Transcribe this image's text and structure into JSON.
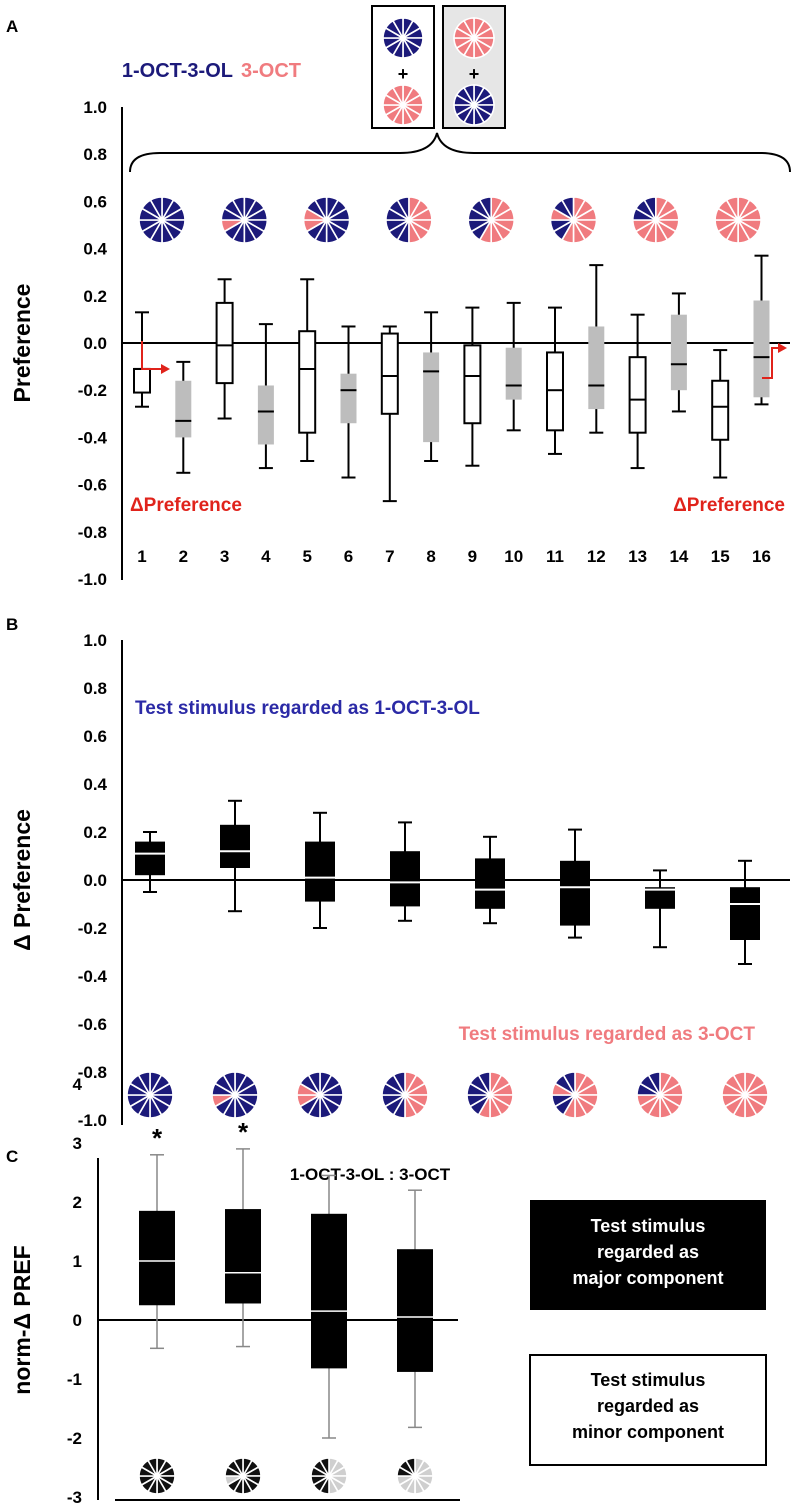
{
  "chart_data": [
    {
      "panel": "A",
      "type": "boxplot",
      "ylabel": "Preference",
      "ylim": [
        -1.0,
        1.0
      ],
      "yticks": [
        "1.0",
        "0.8",
        "0.6",
        "0.4",
        "0.2",
        "0.0",
        "-0.2",
        "-0.4",
        "-0.6",
        "-0.8",
        "-1.0"
      ],
      "categories": [
        "1",
        "2",
        "3",
        "4",
        "5",
        "6",
        "7",
        "8",
        "9",
        "10",
        "11",
        "12",
        "13",
        "14",
        "15",
        "16"
      ],
      "legend": {
        "series1": "1-OCT-3-OL",
        "series2": "3-OCT"
      },
      "annotation_left": "ΔPreference",
      "annotation_right": "ΔPreference",
      "colors": {
        "series1": "#1c1a7a",
        "series2": "#f07b7f",
        "open_box": "#ffffff",
        "filled_box": "#bdbdbd",
        "arrow": "#e0231b"
      },
      "mixture_pink_segments": [
        0,
        1,
        2,
        3,
        4,
        5,
        6,
        8
      ],
      "boxes": [
        {
          "x": "1",
          "whislo": -0.27,
          "q1": -0.21,
          "med": -0.11,
          "q3": -0.11,
          "whishi": 0.13,
          "fill": "open"
        },
        {
          "x": "2",
          "whislo": -0.55,
          "q1": -0.4,
          "med": -0.33,
          "q3": -0.16,
          "whishi": -0.08,
          "fill": "filled"
        },
        {
          "x": "3",
          "whislo": -0.32,
          "q1": -0.17,
          "med": -0.01,
          "q3": 0.17,
          "whishi": 0.27,
          "fill": "open"
        },
        {
          "x": "4",
          "whislo": -0.53,
          "q1": -0.43,
          "med": -0.29,
          "q3": -0.18,
          "whishi": 0.08,
          "fill": "filled"
        },
        {
          "x": "5",
          "whislo": -0.5,
          "q1": -0.38,
          "med": -0.11,
          "q3": 0.05,
          "whishi": 0.27,
          "fill": "open"
        },
        {
          "x": "6",
          "whislo": -0.57,
          "q1": -0.34,
          "med": -0.2,
          "q3": -0.13,
          "whishi": 0.07,
          "fill": "filled"
        },
        {
          "x": "7",
          "whislo": -0.67,
          "q1": -0.3,
          "med": -0.14,
          "q3": 0.04,
          "whishi": 0.07,
          "fill": "open"
        },
        {
          "x": "8",
          "whislo": -0.5,
          "q1": -0.42,
          "med": -0.12,
          "q3": -0.04,
          "whishi": 0.13,
          "fill": "filled"
        },
        {
          "x": "9",
          "whislo": -0.52,
          "q1": -0.34,
          "med": -0.14,
          "q3": -0.01,
          "whishi": 0.15,
          "fill": "open"
        },
        {
          "x": "10",
          "whislo": -0.37,
          "q1": -0.24,
          "med": -0.18,
          "q3": -0.02,
          "whishi": 0.17,
          "fill": "filled"
        },
        {
          "x": "11",
          "whislo": -0.47,
          "q1": -0.37,
          "med": -0.2,
          "q3": -0.04,
          "whishi": 0.15,
          "fill": "open"
        },
        {
          "x": "12",
          "whislo": -0.38,
          "q1": -0.28,
          "med": -0.18,
          "q3": 0.07,
          "whishi": 0.33,
          "fill": "filled"
        },
        {
          "x": "13",
          "whislo": -0.53,
          "q1": -0.38,
          "med": -0.24,
          "q3": -0.06,
          "whishi": 0.12,
          "fill": "open"
        },
        {
          "x": "14",
          "whislo": -0.29,
          "q1": -0.2,
          "med": -0.09,
          "q3": 0.12,
          "whishi": 0.21,
          "fill": "filled"
        },
        {
          "x": "15",
          "whislo": -0.57,
          "q1": -0.41,
          "med": -0.27,
          "q3": -0.16,
          "whishi": -0.03,
          "fill": "open"
        },
        {
          "x": "16",
          "whislo": -0.26,
          "q1": -0.23,
          "med": -0.06,
          "q3": 0.18,
          "whishi": 0.37,
          "fill": "filled"
        }
      ]
    },
    {
      "panel": "B",
      "type": "boxplot",
      "ylabel": "Δ Preference",
      "ylim": [
        -1.0,
        1.0
      ],
      "yticks": [
        "1.0",
        "0.8",
        "0.6",
        "0.4",
        "0.2",
        "0.0",
        "-0.2",
        "-0.4",
        "-0.6",
        "-0.8",
        "-1.0"
      ],
      "annotation_top": "Test stimulus regarded as  1-OCT-3-OL",
      "annotation_bottom": "Test stimulus regarded as  3-OCT",
      "colors": {
        "annotation_top": "#2b2aa6",
        "annotation_bottom": "#f07b7f",
        "box": "#000000"
      },
      "boxes": [
        {
          "whislo": -0.05,
          "q1": 0.02,
          "med": 0.11,
          "q3": 0.16,
          "whishi": 0.2
        },
        {
          "whislo": -0.13,
          "q1": 0.05,
          "med": 0.12,
          "q3": 0.23,
          "whishi": 0.33
        },
        {
          "whislo": -0.2,
          "q1": -0.09,
          "med": 0.01,
          "q3": 0.16,
          "whishi": 0.28
        },
        {
          "whislo": -0.17,
          "q1": -0.11,
          "med": -0.01,
          "q3": 0.12,
          "whishi": 0.24
        },
        {
          "whislo": -0.18,
          "q1": -0.12,
          "med": -0.04,
          "q3": 0.09,
          "whishi": 0.18
        },
        {
          "whislo": -0.24,
          "q1": -0.19,
          "med": -0.03,
          "q3": 0.08,
          "whishi": 0.21
        },
        {
          "whislo": -0.28,
          "q1": -0.12,
          "med": -0.04,
          "q3": -0.03,
          "whishi": 0.04
        },
        {
          "whislo": -0.35,
          "q1": -0.25,
          "med": -0.1,
          "q3": -0.03,
          "whishi": 0.08
        }
      ]
    },
    {
      "panel": "C",
      "type": "boxplot",
      "ylabel": "norm-Δ PREF",
      "ylim": [
        -3,
        4
      ],
      "yticks": [
        "4",
        "3",
        "2",
        "1",
        "0",
        "-1",
        "-2",
        "-3"
      ],
      "title": "1-OCT-3-OL : 3-OCT",
      "legend_major": [
        "Test stimulus",
        "regarded as",
        "major component"
      ],
      "legend_minor": [
        "Test stimulus",
        "regarded as",
        "minor component"
      ],
      "significance_mark": "*",
      "boxes": [
        {
          "whislo": -0.48,
          "q1": 0.25,
          "med": 1.0,
          "q3": 1.85,
          "whishi": 2.8,
          "sig": true
        },
        {
          "whislo": -0.45,
          "q1": 0.28,
          "med": 0.8,
          "q3": 1.88,
          "whishi": 2.9,
          "sig": true
        },
        {
          "whislo": -2.0,
          "q1": -0.82,
          "med": 0.15,
          "q3": 1.8,
          "whishi": 2.45,
          "sig": false
        },
        {
          "whislo": -1.82,
          "q1": -0.88,
          "med": 0.05,
          "q3": 1.2,
          "whishi": 2.2,
          "sig": false
        }
      ]
    }
  ]
}
